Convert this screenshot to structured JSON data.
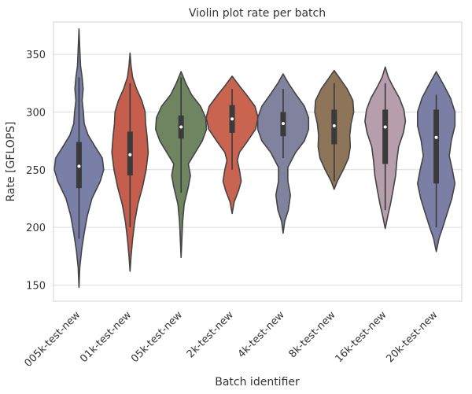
{
  "chart_data": {
    "type": "violin",
    "title": "Violin plot rate per batch",
    "xlabel": "Batch identifier",
    "ylabel": "Rate [GFLOPS]",
    "ylim": [
      136,
      378
    ],
    "yticks": [
      150,
      200,
      250,
      300,
      350
    ],
    "grid": "horizontal",
    "categories": [
      "005k-test-new",
      "01k-test-new",
      "05k-test-new",
      "2k-test-new",
      "4k-test-new",
      "8k-test-new",
      "16k-test-new",
      "20k-test-new"
    ],
    "colors": [
      "#7a7fa8",
      "#c65e4e",
      "#6f8561",
      "#c8644f",
      "#80829e",
      "#8e7458",
      "#b69ead",
      "#7c7fa5"
    ],
    "series": [
      {
        "category": "005k-test-new",
        "median": 253,
        "q1": 234,
        "q3": 274,
        "whisker_low": 190,
        "whisker_high": 330,
        "min": 148,
        "max": 372,
        "density": [
          [
            148,
            0.0
          ],
          [
            165,
            0.03
          ],
          [
            180,
            0.1
          ],
          [
            195,
            0.2
          ],
          [
            210,
            0.32
          ],
          [
            225,
            0.5
          ],
          [
            240,
            0.82
          ],
          [
            250,
            0.95
          ],
          [
            260,
            0.9
          ],
          [
            270,
            0.62
          ],
          [
            280,
            0.35
          ],
          [
            290,
            0.2
          ],
          [
            300,
            0.17
          ],
          [
            310,
            0.12
          ],
          [
            320,
            0.16
          ],
          [
            330,
            0.12
          ],
          [
            340,
            0.06
          ],
          [
            355,
            0.03
          ],
          [
            372,
            0.0
          ]
        ]
      },
      {
        "category": "01k-test-new",
        "median": 263,
        "q1": 245,
        "q3": 283,
        "whisker_low": 200,
        "whisker_high": 325,
        "min": 162,
        "max": 351,
        "density": [
          [
            162,
            0.0
          ],
          [
            175,
            0.04
          ],
          [
            190,
            0.1
          ],
          [
            205,
            0.18
          ],
          [
            220,
            0.3
          ],
          [
            235,
            0.48
          ],
          [
            250,
            0.62
          ],
          [
            265,
            0.7
          ],
          [
            280,
            0.65
          ],
          [
            290,
            0.6
          ],
          [
            300,
            0.58
          ],
          [
            310,
            0.45
          ],
          [
            320,
            0.25
          ],
          [
            330,
            0.1
          ],
          [
            340,
            0.04
          ],
          [
            351,
            0.0
          ]
        ]
      },
      {
        "category": "05k-test-new",
        "median": 287,
        "q1": 277,
        "q3": 297,
        "whisker_low": 230,
        "whisker_high": 330,
        "min": 174,
        "max": 335,
        "density": [
          [
            174,
            0.0
          ],
          [
            190,
            0.03
          ],
          [
            205,
            0.06
          ],
          [
            220,
            0.12
          ],
          [
            235,
            0.28
          ],
          [
            245,
            0.36
          ],
          [
            255,
            0.28
          ],
          [
            265,
            0.55
          ],
          [
            275,
            0.82
          ],
          [
            285,
            0.98
          ],
          [
            295,
            0.95
          ],
          [
            305,
            0.75
          ],
          [
            315,
            0.4
          ],
          [
            325,
            0.18
          ],
          [
            335,
            0.0
          ]
        ]
      },
      {
        "category": "2k-test-new",
        "median": 294,
        "q1": 282,
        "q3": 306,
        "whisker_low": 250,
        "whisker_high": 320,
        "min": 212,
        "max": 331,
        "density": [
          [
            212,
            0.0
          ],
          [
            222,
            0.08
          ],
          [
            232,
            0.25
          ],
          [
            240,
            0.35
          ],
          [
            250,
            0.28
          ],
          [
            258,
            0.2
          ],
          [
            265,
            0.28
          ],
          [
            275,
            0.6
          ],
          [
            285,
            0.9
          ],
          [
            295,
            1.0
          ],
          [
            305,
            0.88
          ],
          [
            315,
            0.55
          ],
          [
            322,
            0.3
          ],
          [
            331,
            0.0
          ]
        ]
      },
      {
        "category": "4k-test-new",
        "median": 290,
        "q1": 279,
        "q3": 300,
        "whisker_low": 260,
        "whisker_high": 320,
        "min": 195,
        "max": 333,
        "density": [
          [
            195,
            0.0
          ],
          [
            205,
            0.06
          ],
          [
            215,
            0.2
          ],
          [
            228,
            0.28
          ],
          [
            240,
            0.18
          ],
          [
            252,
            0.18
          ],
          [
            265,
            0.48
          ],
          [
            275,
            0.82
          ],
          [
            285,
            0.98
          ],
          [
            295,
            0.98
          ],
          [
            305,
            0.82
          ],
          [
            315,
            0.5
          ],
          [
            325,
            0.2
          ],
          [
            333,
            0.0
          ]
        ]
      },
      {
        "category": "8k-test-new",
        "median": 288,
        "q1": 272,
        "q3": 302,
        "whisker_low": 240,
        "whisker_high": 325,
        "min": 233,
        "max": 336,
        "density": [
          [
            233,
            0.0
          ],
          [
            240,
            0.12
          ],
          [
            250,
            0.35
          ],
          [
            260,
            0.55
          ],
          [
            270,
            0.62
          ],
          [
            280,
            0.6
          ],
          [
            290,
            0.65
          ],
          [
            300,
            0.75
          ],
          [
            310,
            0.72
          ],
          [
            320,
            0.5
          ],
          [
            328,
            0.25
          ],
          [
            336,
            0.0
          ]
        ]
      },
      {
        "category": "16k-test-new",
        "median": 287,
        "q1": 255,
        "q3": 302,
        "whisker_low": 215,
        "whisker_high": 325,
        "min": 199,
        "max": 339,
        "density": [
          [
            199,
            0.0
          ],
          [
            210,
            0.1
          ],
          [
            220,
            0.2
          ],
          [
            232,
            0.3
          ],
          [
            245,
            0.4
          ],
          [
            258,
            0.45
          ],
          [
            270,
            0.52
          ],
          [
            282,
            0.7
          ],
          [
            292,
            0.78
          ],
          [
            302,
            0.72
          ],
          [
            312,
            0.55
          ],
          [
            322,
            0.3
          ],
          [
            330,
            0.12
          ],
          [
            339,
            0.0
          ]
        ]
      },
      {
        "category": "20k-test-new",
        "median": 278,
        "q1": 238,
        "q3": 302,
        "whisker_low": 200,
        "whisker_high": 315,
        "min": 179,
        "max": 335,
        "density": [
          [
            179,
            0.0
          ],
          [
            190,
            0.1
          ],
          [
            200,
            0.25
          ],
          [
            212,
            0.42
          ],
          [
            225,
            0.6
          ],
          [
            238,
            0.72
          ],
          [
            250,
            0.62
          ],
          [
            262,
            0.5
          ],
          [
            275,
            0.58
          ],
          [
            288,
            0.72
          ],
          [
            300,
            0.72
          ],
          [
            312,
            0.55
          ],
          [
            322,
            0.32
          ],
          [
            335,
            0.0
          ]
        ]
      }
    ]
  }
}
